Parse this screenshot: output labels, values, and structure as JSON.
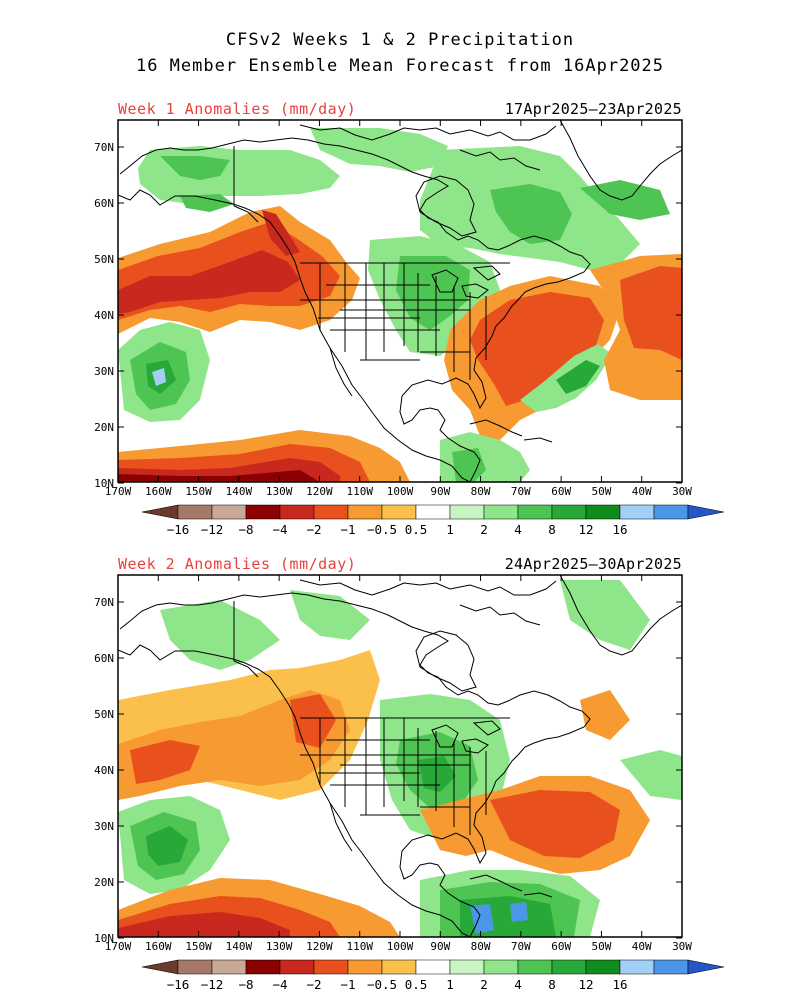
{
  "title": {
    "line1": "CFSv2 Weeks 1 & 2 Precipitation",
    "line2": "16 Member Ensemble Mean Forecast from 16Apr2025"
  },
  "panels": [
    {
      "label": "Week 1 Anomalies (mm/day)",
      "dates": "17Apr2025–23Apr2025"
    },
    {
      "label": "Week 2 Anomalies (mm/day)",
      "dates": "24Apr2025–30Apr2025"
    }
  ],
  "lat_ticks": [
    "70N",
    "60N",
    "50N",
    "40N",
    "30N",
    "20N",
    "10N"
  ],
  "lon_ticks": [
    "170W",
    "160W",
    "150W",
    "140W",
    "130W",
    "120W",
    "110W",
    "100W",
    "90W",
    "80W",
    "70W",
    "60W",
    "50W",
    "40W",
    "30W"
  ],
  "colorbar": {
    "labels": [
      "−16",
      "−12",
      "−8",
      "−4",
      "−2",
      "−1",
      "−0.5",
      "0.5",
      "1",
      "2",
      "4",
      "8",
      "12",
      "16"
    ],
    "colors": [
      "#6b3a2a",
      "#a67868",
      "#c9a898",
      "#8b0000",
      "#c8281e",
      "#e8501e",
      "#f89a32",
      "#fbc04c",
      "#ffffff",
      "#c8f5c3",
      "#8fe68a",
      "#4ec452",
      "#28a838",
      "#108c1c",
      "#a2cff5",
      "#4b96e6",
      "#2456c8"
    ]
  },
  "colors": {
    "title_text": "#000000",
    "panel_label": "#e8413c"
  }
}
